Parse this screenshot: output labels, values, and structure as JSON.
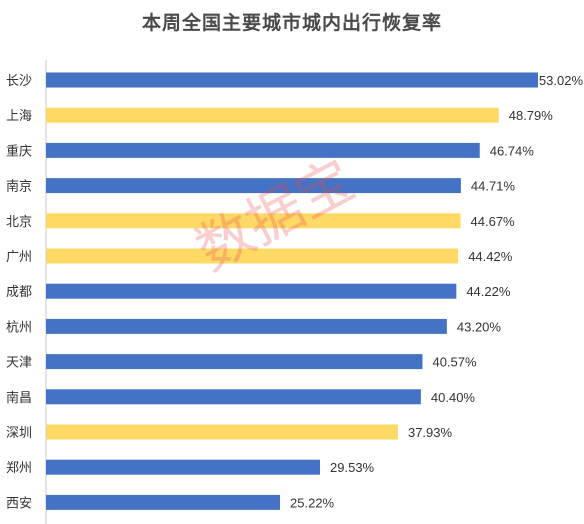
{
  "chart_data": {
    "type": "bar",
    "orientation": "horizontal",
    "title": "本周全国主要城市城内出行恢复率",
    "categories": [
      "长沙",
      "上海",
      "重庆",
      "南京",
      "北京",
      "广州",
      "成都",
      "杭州",
      "天津",
      "南昌",
      "深圳",
      "郑州",
      "西安"
    ],
    "values": [
      53.02,
      48.79,
      46.74,
      44.71,
      44.67,
      44.42,
      44.22,
      43.2,
      40.57,
      40.4,
      37.93,
      29.53,
      25.22
    ],
    "value_labels": [
      "53.02%",
      "48.79%",
      "46.74%",
      "44.71%",
      "44.67%",
      "44.42%",
      "44.22%",
      "43.20%",
      "40.57%",
      "40.40%",
      "37.93%",
      "29.53%",
      "25.22%"
    ],
    "bar_colors": [
      "#4472C4",
      "#FFD966",
      "#4472C4",
      "#4472C4",
      "#FFD966",
      "#FFD966",
      "#4472C4",
      "#4472C4",
      "#4472C4",
      "#4472C4",
      "#FFD966",
      "#4472C4",
      "#4472C4"
    ],
    "xlim": [
      0,
      53.02
    ],
    "grid": false
  },
  "watermark": "数据宝"
}
